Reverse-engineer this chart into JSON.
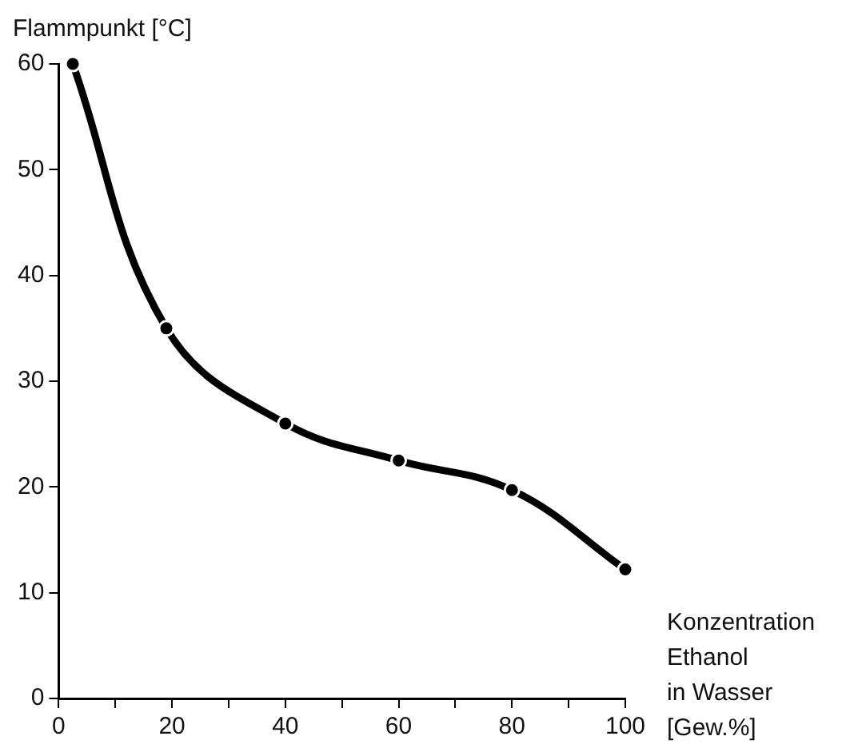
{
  "chart_data": {
    "type": "line",
    "ylabel": "Flammpunkt [°C]",
    "xlabel": "Konzentration\nEthanol\nin Wasser\n[Gew.%]",
    "x": [
      2.5,
      19,
      40,
      60,
      80,
      100
    ],
    "series": [
      {
        "color": "#000000",
        "values": [
          60,
          35,
          26,
          22.5,
          19.7,
          12.2
        ]
      }
    ],
    "xlim": [
      0,
      100
    ],
    "ylim": [
      0,
      60
    ],
    "xticks": [
      0,
      {
        "value": 10,
        "label": null
      },
      20,
      {
        "value": 30,
        "label": null
      },
      40,
      {
        "value": 50,
        "label": null
      },
      60,
      {
        "value": 70,
        "label": null
      },
      80,
      {
        "value": 90,
        "label": null
      },
      100
    ],
    "yticks": [
      0,
      10,
      20,
      30,
      40,
      50,
      60
    ],
    "marker": "circle",
    "line_style": "solid",
    "grid": false,
    "legend": false
  }
}
